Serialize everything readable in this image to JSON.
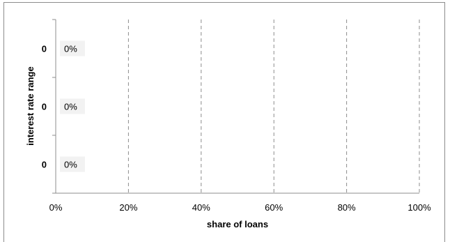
{
  "chart_data": {
    "type": "bar",
    "orientation": "horizontal",
    "title": "",
    "xlabel": "share of loans",
    "ylabel": "interest rate range",
    "categories": [
      "0",
      "0",
      "0"
    ],
    "values": [
      0,
      0,
      0
    ],
    "data_labels": [
      "0%",
      "0%",
      "0%"
    ],
    "xlim": [
      0,
      100
    ],
    "x_ticks": [
      0,
      20,
      40,
      60,
      80,
      100
    ],
    "x_tick_labels": [
      "0%",
      "20%",
      "40%",
      "60%",
      "80%",
      "100%"
    ],
    "grid": "vertical dashed",
    "legend": "none"
  }
}
